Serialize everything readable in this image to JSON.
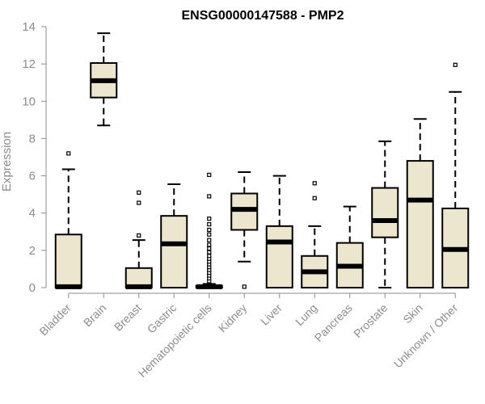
{
  "chart_data": {
    "type": "boxplot",
    "title": "ENSG00000147588 - PMP2",
    "ylabel": "Expression",
    "xlabel": "",
    "ylim": [
      0,
      14
    ],
    "yticks": [
      0,
      2,
      4,
      6,
      8,
      10,
      12,
      14
    ],
    "grid": false,
    "box_fill": "#ede6cf",
    "box_edge": "#000000",
    "categories": [
      "Bladder",
      "Brain",
      "Breast",
      "Gastric",
      "Hematopoietic cells",
      "Kidney",
      "Liver",
      "Lung",
      "Pancreas",
      "Prostate",
      "Skin",
      "Unknown / Other"
    ],
    "boxes": [
      {
        "category": "Bladder",
        "whisker_low": 0,
        "q1": 0,
        "median": 0.05,
        "q3": 2.85,
        "whisker_high": 6.35,
        "outliers": [
          7.2
        ]
      },
      {
        "category": "Brain",
        "whisker_low": 8.7,
        "q1": 10.2,
        "median": 11.1,
        "q3": 12.05,
        "whisker_high": 13.65,
        "outliers": []
      },
      {
        "category": "Breast",
        "whisker_low": 0,
        "q1": 0,
        "median": 0.05,
        "q3": 1.05,
        "whisker_high": 2.55,
        "outliers": [
          2.8,
          4.55,
          5.1
        ]
      },
      {
        "category": "Gastric",
        "whisker_low": 0,
        "q1": 0,
        "median": 2.35,
        "q3": 3.85,
        "whisker_high": 5.55,
        "outliers": []
      },
      {
        "category": "Hematopoietic cells",
        "whisker_low": 0,
        "q1": 0,
        "median": 0.05,
        "q3": 0.1,
        "whisker_high": 0.2,
        "outliers": [
          0.35,
          0.5,
          0.65,
          0.8,
          0.95,
          1.1,
          1.25,
          1.4,
          1.55,
          1.7,
          1.9,
          2.1,
          2.3,
          2.55,
          2.85,
          3.1,
          3.4,
          3.7,
          4.9,
          6.05
        ]
      },
      {
        "category": "Kidney",
        "whisker_low": 1.4,
        "q1": 3.1,
        "median": 4.2,
        "q3": 5.05,
        "whisker_high": 6.2,
        "outliers": [
          0.05
        ]
      },
      {
        "category": "Liver",
        "whisker_low": 0,
        "q1": 0,
        "median": 2.45,
        "q3": 3.3,
        "whisker_high": 6.0,
        "outliers": []
      },
      {
        "category": "Lung",
        "whisker_low": 0,
        "q1": 0,
        "median": 0.85,
        "q3": 1.7,
        "whisker_high": 3.3,
        "outliers": [
          4.8,
          5.6
        ]
      },
      {
        "category": "Pancreas",
        "whisker_low": 0,
        "q1": 0,
        "median": 1.15,
        "q3": 2.4,
        "whisker_high": 4.35,
        "outliers": []
      },
      {
        "category": "Prostate",
        "whisker_low": 0,
        "q1": 2.7,
        "median": 3.6,
        "q3": 5.35,
        "whisker_high": 7.85,
        "outliers": []
      },
      {
        "category": "Skin",
        "whisker_low": 0,
        "q1": 0,
        "median": 4.7,
        "q3": 6.8,
        "whisker_high": 9.05,
        "outliers": []
      },
      {
        "category": "Unknown / Other",
        "whisker_low": 0,
        "q1": 0,
        "median": 2.05,
        "q3": 4.25,
        "whisker_high": 10.5,
        "outliers": [
          11.95
        ]
      }
    ]
  }
}
